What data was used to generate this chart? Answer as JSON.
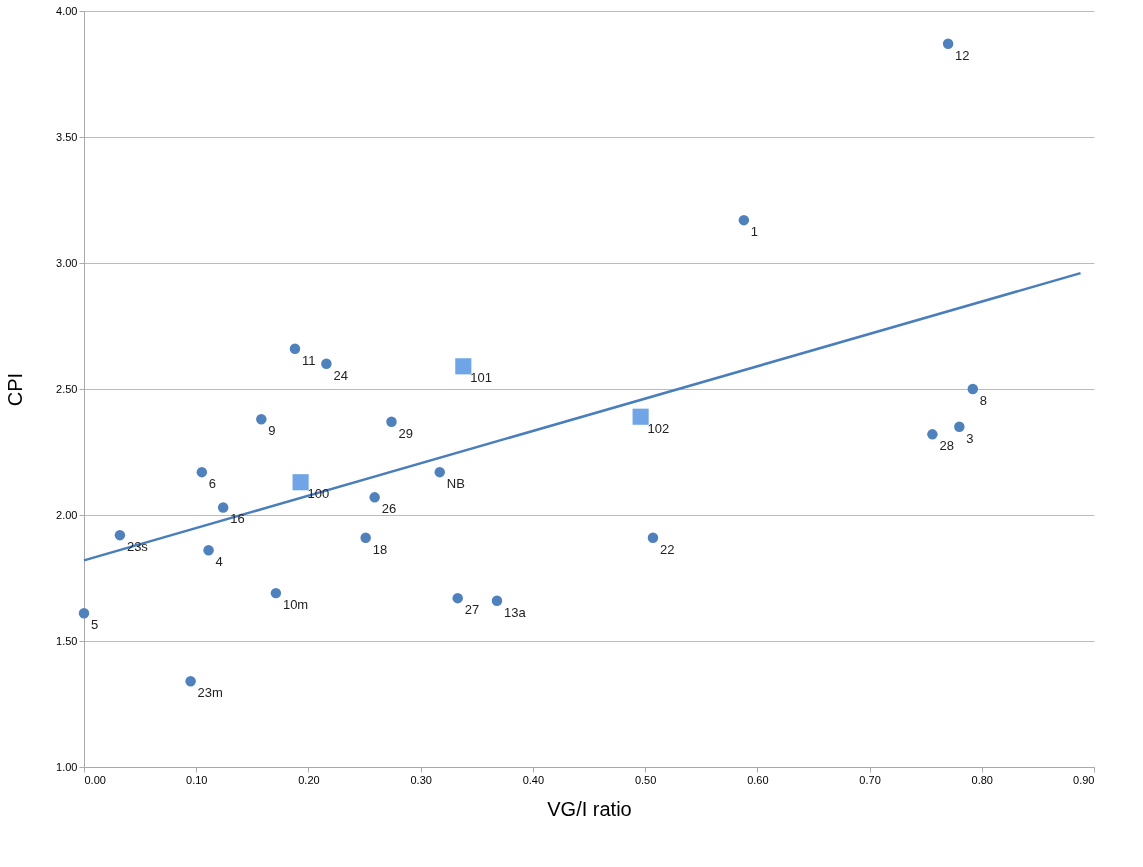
{
  "chart_data": {
    "type": "scatter",
    "xlabel": "VG/I ratio",
    "ylabel": "CPI",
    "xlim": [
      0,
      0.9
    ],
    "ylim": [
      1,
      4
    ],
    "xticks": [
      {
        "value": 0,
        "label": "0.00"
      },
      {
        "value": 0.1,
        "label": "0.10"
      },
      {
        "value": 0.2,
        "label": "0.20"
      },
      {
        "value": 0.3,
        "label": "0.30"
      },
      {
        "value": 0.4,
        "label": "0.40"
      },
      {
        "value": 0.5,
        "label": "0.50"
      },
      {
        "value": 0.6,
        "label": "0.60"
      },
      {
        "value": 0.7,
        "label": "0.70"
      },
      {
        "value": 0.8,
        "label": "0.80"
      },
      {
        "value": 0.9,
        "label": "0.90"
      }
    ],
    "yticks": [
      {
        "value": 1,
        "label": "1.00"
      },
      {
        "value": 1.5,
        "label": "1.50"
      },
      {
        "value": 2,
        "label": "2.00"
      },
      {
        "value": 2.5,
        "label": "2.50"
      },
      {
        "value": 3,
        "label": "3.00"
      },
      {
        "value": 3.5,
        "label": "3.50"
      },
      {
        "value": 4,
        "label": "4.00"
      }
    ],
    "grid": "y",
    "series": [
      {
        "marker": "circle",
        "color": "#4f81bd",
        "x": [
          0.0,
          0.032,
          0.095,
          0.111,
          0.105,
          0.124,
          0.158,
          0.171,
          0.251,
          0.259,
          0.274,
          0.317,
          0.333,
          0.368,
          0.188,
          0.216,
          0.77,
          0.588,
          0.507,
          0.792,
          0.78,
          0.756
        ],
        "values": [
          1.61,
          1.92,
          1.34,
          1.86,
          2.17,
          2.03,
          2.38,
          1.69,
          1.91,
          2.07,
          2.37,
          2.17,
          1.67,
          1.66,
          2.66,
          2.6,
          3.87,
          3.17,
          1.91,
          2.5,
          2.35,
          2.32
        ]
      },
      {
        "type": "scatter",
        "marker": "square",
        "color": "#6fa4e6",
        "x": [
          0.193,
          0.338,
          0.496
        ],
        "values": [
          2.13,
          2.59,
          2.39
        ]
      },
      {
        "type": "line",
        "color": "#4a7ebb",
        "x": [
          0.0,
          0.888
        ],
        "values": [
          1.82,
          2.96
        ]
      }
    ],
    "annotations": [
      {
        "text": "5",
        "x": 0.0,
        "y": 1.61
      },
      {
        "text": "23s",
        "x": 0.032,
        "y": 1.92
      },
      {
        "text": "23m",
        "x": 0.095,
        "y": 1.34
      },
      {
        "text": "4",
        "x": 0.111,
        "y": 1.86
      },
      {
        "text": "6",
        "x": 0.105,
        "y": 2.17
      },
      {
        "text": "16",
        "x": 0.124,
        "y": 2.03
      },
      {
        "text": "9",
        "x": 0.158,
        "y": 2.38
      },
      {
        "text": "10m",
        "x": 0.171,
        "y": 1.69
      },
      {
        "text": "18",
        "x": 0.251,
        "y": 1.91
      },
      {
        "text": "26",
        "x": 0.259,
        "y": 2.07
      },
      {
        "text": "29",
        "x": 0.274,
        "y": 2.37
      },
      {
        "text": "NB",
        "x": 0.317,
        "y": 2.17
      },
      {
        "text": "27",
        "x": 0.333,
        "y": 1.67
      },
      {
        "text": "13a",
        "x": 0.368,
        "y": 1.66
      },
      {
        "text": "11",
        "x": 0.188,
        "y": 2.66
      },
      {
        "text": "24",
        "x": 0.216,
        "y": 2.6
      },
      {
        "text": "12",
        "x": 0.77,
        "y": 3.87
      },
      {
        "text": "1",
        "x": 0.588,
        "y": 3.17
      },
      {
        "text": "22",
        "x": 0.507,
        "y": 1.91
      },
      {
        "text": "8",
        "x": 0.792,
        "y": 2.5
      },
      {
        "text": "3",
        "x": 0.78,
        "y": 2.35
      },
      {
        "text": "28",
        "x": 0.756,
        "y": 2.32
      },
      {
        "text": "100",
        "x": 0.193,
        "y": 2.13
      },
      {
        "text": "101",
        "x": 0.338,
        "y": 2.59
      },
      {
        "text": "102",
        "x": 0.496,
        "y": 2.39
      }
    ]
  }
}
